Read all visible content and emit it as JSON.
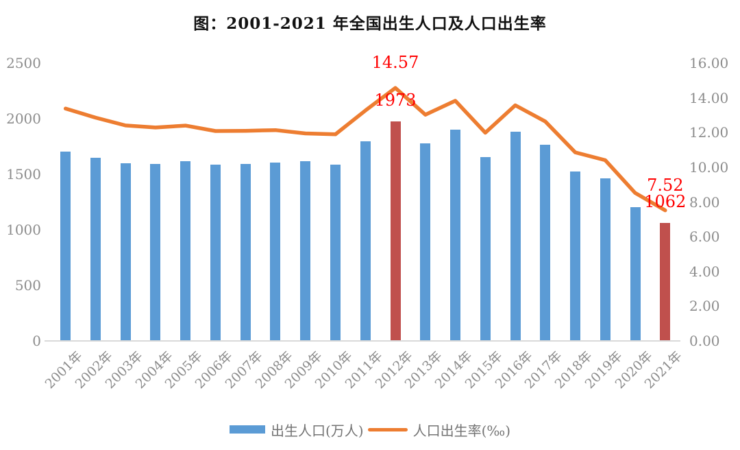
{
  "title": "图：2001-2021 年全国出生人口及人口出生率",
  "chart_data": {
    "type": "bar",
    "subtype": "bar+line combo, dual y-axis",
    "categories": [
      "2001年",
      "2002年",
      "2003年",
      "2004年",
      "2005年",
      "2006年",
      "2007年",
      "2008年",
      "2009年",
      "2010年",
      "2011年",
      "2012年",
      "2013年",
      "2014年",
      "2015年",
      "2016年",
      "2017年",
      "2018年",
      "2019年",
      "2020年",
      "2021年"
    ],
    "series": [
      {
        "name": "出生人口(万人)",
        "type": "bar",
        "axis": "left",
        "color": "#5B9BD5",
        "highlight_color": "#C0504D",
        "highlighted_indices": [
          11,
          20
        ],
        "values": [
          1702,
          1647,
          1599,
          1593,
          1617,
          1585,
          1594,
          1608,
          1615,
          1588,
          1797,
          1973,
          1776,
          1902,
          1655,
          1883,
          1765,
          1523,
          1465,
          1202,
          1062
        ]
      },
      {
        "name": "人口出生率(‰)",
        "type": "line",
        "axis": "right",
        "color": "#ED7D31",
        "values": [
          13.38,
          12.86,
          12.41,
          12.29,
          12.4,
          12.09,
          12.1,
          12.14,
          11.95,
          11.9,
          13.27,
          14.57,
          13.03,
          13.83,
          11.99,
          13.57,
          12.64,
          10.86,
          10.41,
          8.52,
          7.52
        ]
      }
    ],
    "left_axis": {
      "min": 0,
      "max": 2500,
      "step": 500,
      "ticks": [
        "2500",
        "2000",
        "1500",
        "1000",
        "500",
        "0"
      ]
    },
    "right_axis": {
      "min": 0,
      "max": 16,
      "step": 2,
      "ticks": [
        "16.00",
        "14.00",
        "12.00",
        "10.00",
        "8.00",
        "6.00",
        "4.00",
        "2.00",
        "0.00"
      ]
    },
    "grid": false,
    "legend_position": "bottom",
    "annotations": [
      {
        "text": "14.57",
        "year_index": 11,
        "anchor": "line",
        "color": "#FF0000"
      },
      {
        "text": "1973",
        "year_index": 11,
        "anchor": "bar",
        "color": "#FF0000"
      },
      {
        "text": "7.52",
        "year_index": 20,
        "anchor": "line",
        "color": "#FF0000"
      },
      {
        "text": "1062",
        "year_index": 20,
        "anchor": "bar",
        "color": "#FF0000"
      }
    ],
    "legend": [
      {
        "label": "出生人口(万人)",
        "swatch": "bar",
        "color": "#5B9BD5"
      },
      {
        "label": "人口出生率(‰)",
        "swatch": "line",
        "color": "#ED7D31"
      }
    ]
  }
}
